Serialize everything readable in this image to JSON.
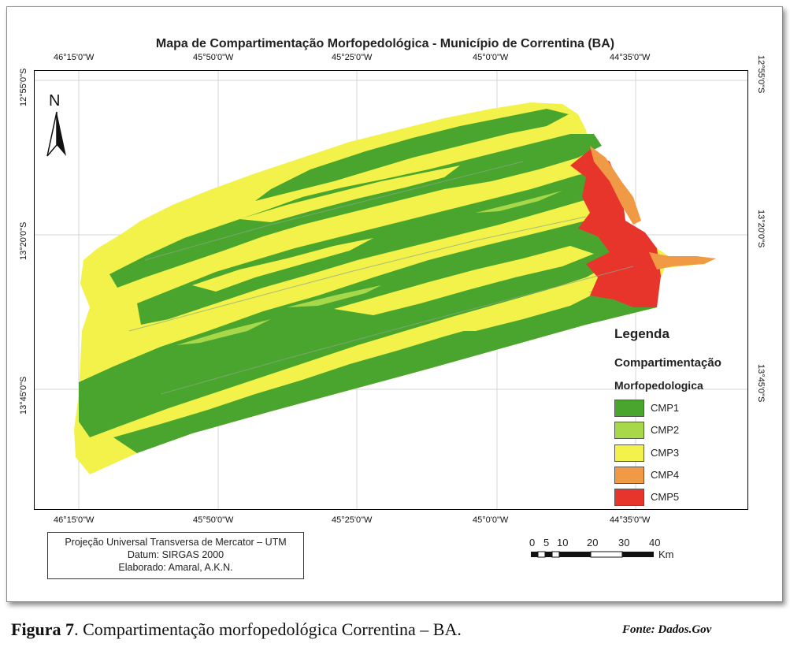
{
  "map": {
    "title": "Mapa de Compartimentação Morfopedológica - Município de Correntina (BA)",
    "top_longitudes": [
      "46°15'0\"W",
      "45°50'0\"W",
      "45°25'0\"W",
      "45°0'0\"W",
      "44°35'0\"W"
    ],
    "bottom_longitudes": [
      "46°15'0\"W",
      "45°50'0\"W",
      "45°25'0\"W",
      "45°0'0\"W",
      "44°35'0\"W"
    ],
    "left_latitudes": [
      "12°55'0\"S",
      "13°20'0\"S",
      "13°45'0\"S"
    ],
    "right_latitudes": [
      "12°55'0\"S",
      "13°20'0\"S",
      "13°45'0\"S"
    ],
    "north_label": "N"
  },
  "legend": {
    "title": "Legenda",
    "subtitle_1": "Compartimentação",
    "subtitle_2": "Morfopedologica",
    "items": [
      {
        "label": "CMP1",
        "color": "#4aa52e"
      },
      {
        "label": "CMP2",
        "color": "#a6d84a"
      },
      {
        "label": "CMP3",
        "color": "#f2f24a"
      },
      {
        "label": "CMP4",
        "color": "#f09a45"
      },
      {
        "label": "CMP5",
        "color": "#e8352c"
      }
    ]
  },
  "projection": {
    "line1": "Projeção Universal Transversa de Mercator – UTM",
    "line2": "Datum: SIRGAS 2000",
    "line3": "Elaborado: Amaral, A.K.N."
  },
  "scale_bar": {
    "ticks": [
      "0",
      "5",
      "10",
      "20",
      "30",
      "40"
    ],
    "unit": "Km"
  },
  "caption": {
    "label": "Figura 7",
    "text": ". Compartimentação morfopedológica Correntina – BA.",
    "source": "Fonte: Dados.Gov"
  }
}
